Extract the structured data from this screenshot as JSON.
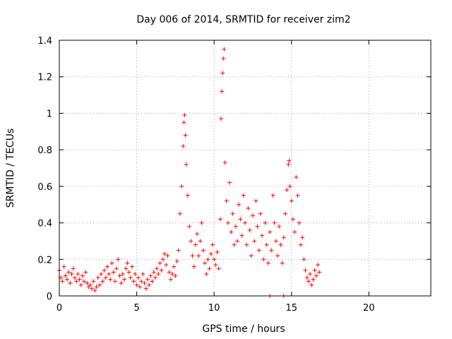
{
  "chart_data": {
    "type": "scatter",
    "title": "Day 006 of 2014, SRMTID for receiver zim2",
    "xlabel": "GPS time / hours",
    "ylabel": "SRMTID / TECUs",
    "xlim": [
      0,
      24
    ],
    "ylim": [
      0,
      1.4
    ],
    "xticks": [
      0,
      5,
      10,
      15,
      20
    ],
    "xtick_labels": [
      "0",
      "5",
      "10",
      "15",
      "20"
    ],
    "yticks": [
      0,
      0.2,
      0.4,
      0.6,
      0.8,
      1.0,
      1.2,
      1.4
    ],
    "ytick_labels": [
      "0",
      "0.2",
      "0.4",
      "0.6",
      "0.8",
      "1",
      "1.2",
      "1.4"
    ],
    "grid": true,
    "marker": "plus",
    "colors": {
      "series": "#ff0000",
      "grid": "#a0a0a0",
      "axis": "#000000"
    },
    "series": [
      {
        "name": "SRMTID",
        "points": [
          [
            0.0,
            0.14
          ],
          [
            0.1,
            0.1
          ],
          [
            0.2,
            0.08
          ],
          [
            0.3,
            0.16
          ],
          [
            0.4,
            0.11
          ],
          [
            0.5,
            0.09
          ],
          [
            0.6,
            0.13
          ],
          [
            0.7,
            0.07
          ],
          [
            0.8,
            0.12
          ],
          [
            0.9,
            0.15
          ],
          [
            1.0,
            0.1
          ],
          [
            1.1,
            0.08
          ],
          [
            1.2,
            0.12
          ],
          [
            1.3,
            0.09
          ],
          [
            1.4,
            0.06
          ],
          [
            1.5,
            0.11
          ],
          [
            1.6,
            0.08
          ],
          [
            1.7,
            0.13
          ],
          [
            1.8,
            0.07
          ],
          [
            1.9,
            0.05
          ],
          [
            2.0,
            0.06
          ],
          [
            2.1,
            0.04
          ],
          [
            2.2,
            0.08
          ],
          [
            2.3,
            0.03
          ],
          [
            2.4,
            0.05
          ],
          [
            2.5,
            0.1
          ],
          [
            2.6,
            0.06
          ],
          [
            2.7,
            0.12
          ],
          [
            2.8,
            0.08
          ],
          [
            2.9,
            0.14
          ],
          [
            3.0,
            0.1
          ],
          [
            3.1,
            0.16
          ],
          [
            3.2,
            0.12
          ],
          [
            3.3,
            0.09
          ],
          [
            3.4,
            0.18
          ],
          [
            3.5,
            0.13
          ],
          [
            3.6,
            0.08
          ],
          [
            3.7,
            0.15
          ],
          [
            3.8,
            0.2
          ],
          [
            3.9,
            0.11
          ],
          [
            4.0,
            0.07
          ],
          [
            4.1,
            0.12
          ],
          [
            4.2,
            0.09
          ],
          [
            4.3,
            0.15
          ],
          [
            4.4,
            0.18
          ],
          [
            4.5,
            0.13
          ],
          [
            4.6,
            0.1
          ],
          [
            4.7,
            0.16
          ],
          [
            4.8,
            0.08
          ],
          [
            4.9,
            0.12
          ],
          [
            5.0,
            0.06
          ],
          [
            5.1,
            0.1
          ],
          [
            5.2,
            0.05
          ],
          [
            5.3,
            0.08
          ],
          [
            5.4,
            0.12
          ],
          [
            5.5,
            0.07
          ],
          [
            5.6,
            0.04
          ],
          [
            5.7,
            0.09
          ],
          [
            5.8,
            0.06
          ],
          [
            5.9,
            0.11
          ],
          [
            6.0,
            0.08
          ],
          [
            6.1,
            0.13
          ],
          [
            6.2,
            0.1
          ],
          [
            6.3,
            0.15
          ],
          [
            6.4,
            0.12
          ],
          [
            6.5,
            0.18
          ],
          [
            6.6,
            0.14
          ],
          [
            6.7,
            0.2
          ],
          [
            6.8,
            0.23
          ],
          [
            6.9,
            0.17
          ],
          [
            7.0,
            0.22
          ],
          [
            7.1,
            0.13
          ],
          [
            7.2,
            0.09
          ],
          [
            7.3,
            0.12
          ],
          [
            7.4,
            0.16
          ],
          [
            7.5,
            0.11
          ],
          [
            7.6,
            0.19
          ],
          [
            7.7,
            0.25
          ],
          [
            7.8,
            0.45
          ],
          [
            7.9,
            0.6
          ],
          [
            8.0,
            0.82
          ],
          [
            8.05,
            0.95
          ],
          [
            8.1,
            0.99
          ],
          [
            8.15,
            0.88
          ],
          [
            8.2,
            0.72
          ],
          [
            8.3,
            0.55
          ],
          [
            8.4,
            0.38
          ],
          [
            8.5,
            0.3
          ],
          [
            8.6,
            0.22
          ],
          [
            8.7,
            0.16
          ],
          [
            8.8,
            0.28
          ],
          [
            8.9,
            0.34
          ],
          [
            9.0,
            0.22
          ],
          [
            9.1,
            0.3
          ],
          [
            9.2,
            0.4
          ],
          [
            9.3,
            0.25
          ],
          [
            9.4,
            0.18
          ],
          [
            9.5,
            0.12
          ],
          [
            9.6,
            0.2
          ],
          [
            9.7,
            0.15
          ],
          [
            9.8,
            0.23
          ],
          [
            9.9,
            0.28
          ],
          [
            10.0,
            0.2
          ],
          [
            10.1,
            0.17
          ],
          [
            10.2,
            0.24
          ],
          [
            10.3,
            0.15
          ],
          [
            10.4,
            0.42
          ],
          [
            10.45,
            0.97
          ],
          [
            10.5,
            1.12
          ],
          [
            10.55,
            1.22
          ],
          [
            10.6,
            1.3
          ],
          [
            10.65,
            1.35
          ],
          [
            10.7,
            0.73
          ],
          [
            10.8,
            0.52
          ],
          [
            10.9,
            0.4
          ],
          [
            11.0,
            0.62
          ],
          [
            11.1,
            0.35
          ],
          [
            11.2,
            0.45
          ],
          [
            11.3,
            0.28
          ],
          [
            11.4,
            0.38
          ],
          [
            11.5,
            0.3
          ],
          [
            11.6,
            0.5
          ],
          [
            11.7,
            0.42
          ],
          [
            11.8,
            0.33
          ],
          [
            11.9,
            0.55
          ],
          [
            12.0,
            0.4
          ],
          [
            12.1,
            0.28
          ],
          [
            12.2,
            0.48
          ],
          [
            12.3,
            0.36
          ],
          [
            12.4,
            0.22
          ],
          [
            12.5,
            0.44
          ],
          [
            12.6,
            0.3
          ],
          [
            12.7,
            0.52
          ],
          [
            12.8,
            0.38
          ],
          [
            12.9,
            0.25
          ],
          [
            13.0,
            0.45
          ],
          [
            13.1,
            0.33
          ],
          [
            13.2,
            0.2
          ],
          [
            13.3,
            0.4
          ],
          [
            13.4,
            0.28
          ],
          [
            13.5,
            0.18
          ],
          [
            13.6,
            0.35
          ],
          [
            13.7,
            0.25
          ],
          [
            13.8,
            0.55
          ],
          [
            13.9,
            0.4
          ],
          [
            14.0,
            0.3
          ],
          [
            14.1,
            0.22
          ],
          [
            14.2,
            0.38
          ],
          [
            14.3,
            0.28
          ],
          [
            14.4,
            0.18
          ],
          [
            14.5,
            0.32
          ],
          [
            14.6,
            0.45
          ],
          [
            14.7,
            0.58
          ],
          [
            14.8,
            0.72
          ],
          [
            14.85,
            0.74
          ],
          [
            14.9,
            0.6
          ],
          [
            15.0,
            0.52
          ],
          [
            15.1,
            0.42
          ],
          [
            15.2,
            0.35
          ],
          [
            15.3,
            0.65
          ],
          [
            15.4,
            0.55
          ],
          [
            15.5,
            0.4
          ],
          [
            15.6,
            0.28
          ],
          [
            15.7,
            0.32
          ],
          [
            15.8,
            0.2
          ],
          [
            15.9,
            0.14
          ],
          [
            16.0,
            0.1
          ],
          [
            16.1,
            0.08
          ],
          [
            16.2,
            0.12
          ],
          [
            16.3,
            0.06
          ],
          [
            16.4,
            0.09
          ],
          [
            16.5,
            0.14
          ],
          [
            16.6,
            0.11
          ],
          [
            16.7,
            0.17
          ],
          [
            16.8,
            0.13
          ],
          [
            13.6,
            0.0
          ],
          [
            14.5,
            0.0
          ]
        ]
      }
    ]
  }
}
